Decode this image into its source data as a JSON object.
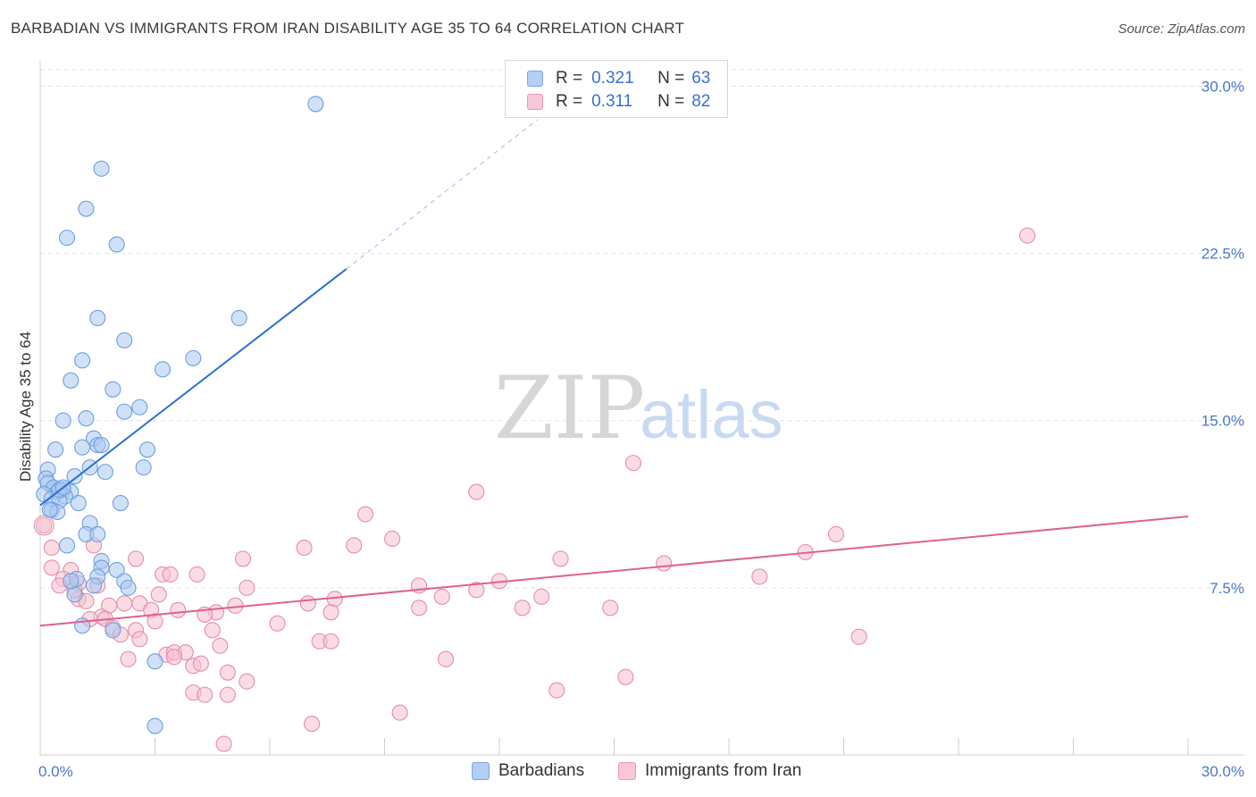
{
  "title": "BARBADIAN VS IMMIGRANTS FROM IRAN DISABILITY AGE 35 TO 64 CORRELATION CHART",
  "source": "Source: ZipAtlas.com",
  "watermark": {
    "zip": "ZIP",
    "atlas": "atlas"
  },
  "legend": {
    "r_label": "R =",
    "n_label": "N =",
    "rows": [
      {
        "r": "0.321",
        "n": "63"
      },
      {
        "r": "0.311",
        "n": "82"
      }
    ]
  },
  "bottom_legend": [
    "Barbadians",
    "Immigrants from Iran"
  ],
  "colors": {
    "blue_fill": "#a9c9f0",
    "blue_stroke": "#6f9fdc",
    "blue_line": "#2c6fd1",
    "pink_fill": "#f6bfd0",
    "pink_stroke": "#e48eab",
    "pink_line": "#e0608e",
    "grid": "#e3e3e3",
    "tick_text": "#4a78c8"
  },
  "chart_data": {
    "type": "scatter",
    "title": "BARBADIAN VS IMMIGRANTS FROM IRAN DISABILITY AGE 35 TO 64 CORRELATION CHART",
    "xlabel": "",
    "ylabel": "Disability Age 35 to 64",
    "xlim": [
      0,
      30
    ],
    "ylim": [
      0,
      30.9
    ],
    "x_tick_labels": [
      "0.0%",
      "30.0%"
    ],
    "y_ticks": [
      7.5,
      15.0,
      22.5,
      30.0
    ],
    "y_tick_labels": [
      "7.5%",
      "15.0%",
      "22.5%",
      "30.0%"
    ],
    "grid": true,
    "legend_position": "top-center",
    "series": [
      {
        "name": "Barbadians",
        "R": 0.321,
        "N": 63,
        "trend": {
          "x": [
            0.0,
            8.0
          ],
          "y": [
            11.2,
            21.8
          ],
          "dashed_to": [
            13.0,
            28.5
          ]
        },
        "points": [
          [
            7.2,
            29.2
          ],
          [
            1.6,
            26.3
          ],
          [
            1.2,
            24.5
          ],
          [
            0.7,
            23.2
          ],
          [
            2.0,
            22.9
          ],
          [
            5.2,
            19.6
          ],
          [
            1.5,
            19.6
          ],
          [
            2.2,
            18.6
          ],
          [
            1.1,
            17.7
          ],
          [
            4.0,
            17.8
          ],
          [
            3.2,
            17.3
          ],
          [
            0.8,
            16.8
          ],
          [
            1.9,
            16.4
          ],
          [
            2.6,
            15.6
          ],
          [
            2.2,
            15.4
          ],
          [
            0.6,
            15.0
          ],
          [
            1.2,
            15.1
          ],
          [
            1.4,
            14.2
          ],
          [
            1.5,
            13.9
          ],
          [
            1.1,
            13.8
          ],
          [
            0.4,
            13.7
          ],
          [
            2.8,
            13.7
          ],
          [
            1.6,
            13.9
          ],
          [
            0.2,
            12.8
          ],
          [
            1.3,
            12.9
          ],
          [
            1.7,
            12.7
          ],
          [
            2.7,
            12.9
          ],
          [
            0.9,
            12.5
          ],
          [
            0.15,
            12.4
          ],
          [
            0.2,
            12.2
          ],
          [
            0.35,
            12.0
          ],
          [
            0.6,
            11.9
          ],
          [
            0.45,
            11.8
          ],
          [
            0.8,
            11.8
          ],
          [
            0.65,
            11.6
          ],
          [
            0.1,
            11.7
          ],
          [
            0.3,
            11.5
          ],
          [
            0.5,
            11.4
          ],
          [
            1.0,
            11.3
          ],
          [
            2.1,
            11.3
          ],
          [
            0.3,
            11.0
          ],
          [
            0.45,
            10.9
          ],
          [
            1.3,
            10.4
          ],
          [
            1.2,
            9.9
          ],
          [
            1.5,
            9.9
          ],
          [
            0.7,
            9.4
          ],
          [
            1.6,
            8.7
          ],
          [
            2.0,
            8.3
          ],
          [
            1.6,
            8.4
          ],
          [
            0.95,
            7.9
          ],
          [
            1.5,
            8.0
          ],
          [
            2.2,
            7.8
          ],
          [
            2.3,
            7.5
          ],
          [
            0.9,
            7.2
          ],
          [
            1.1,
            5.8
          ],
          [
            1.9,
            5.6
          ],
          [
            3.0,
            4.2
          ],
          [
            3.0,
            1.3
          ],
          [
            0.5,
            11.9
          ],
          [
            0.25,
            11.0
          ],
          [
            0.8,
            7.8
          ],
          [
            1.4,
            7.6
          ],
          [
            0.6,
            12.0
          ]
        ]
      },
      {
        "name": "Immigrants from Iran",
        "R": 0.311,
        "N": 82,
        "trend": {
          "x": [
            0.0,
            30.0
          ],
          "y": [
            5.8,
            10.7
          ]
        },
        "points": [
          [
            25.8,
            23.3
          ],
          [
            15.5,
            13.1
          ],
          [
            11.4,
            11.8
          ],
          [
            8.5,
            10.8
          ],
          [
            9.2,
            9.7
          ],
          [
            20.8,
            9.9
          ],
          [
            6.9,
            9.3
          ],
          [
            8.2,
            9.4
          ],
          [
            20.0,
            9.1
          ],
          [
            13.6,
            8.8
          ],
          [
            2.5,
            8.8
          ],
          [
            5.3,
            8.8
          ],
          [
            16.3,
            8.6
          ],
          [
            0.3,
            8.4
          ],
          [
            0.8,
            8.3
          ],
          [
            1.4,
            9.4
          ],
          [
            0.1,
            10.3
          ],
          [
            0.3,
            9.3
          ],
          [
            3.2,
            8.1
          ],
          [
            3.4,
            8.1
          ],
          [
            4.1,
            8.1
          ],
          [
            18.8,
            8.0
          ],
          [
            12.0,
            7.8
          ],
          [
            0.6,
            7.9
          ],
          [
            0.5,
            7.6
          ],
          [
            1.0,
            7.7
          ],
          [
            1.5,
            7.6
          ],
          [
            9.9,
            7.6
          ],
          [
            11.4,
            7.4
          ],
          [
            5.4,
            7.5
          ],
          [
            10.5,
            7.1
          ],
          [
            13.1,
            7.1
          ],
          [
            3.1,
            7.2
          ],
          [
            7.7,
            7.0
          ],
          [
            1.0,
            7.0
          ],
          [
            1.2,
            6.9
          ],
          [
            2.6,
            6.8
          ],
          [
            1.8,
            6.7
          ],
          [
            2.2,
            6.8
          ],
          [
            5.1,
            6.7
          ],
          [
            7.0,
            6.8
          ],
          [
            9.9,
            6.6
          ],
          [
            12.6,
            6.6
          ],
          [
            14.9,
            6.6
          ],
          [
            2.9,
            6.5
          ],
          [
            3.6,
            6.5
          ],
          [
            4.6,
            6.4
          ],
          [
            7.6,
            6.4
          ],
          [
            4.3,
            6.3
          ],
          [
            1.6,
            6.2
          ],
          [
            1.7,
            6.1
          ],
          [
            3.0,
            6.0
          ],
          [
            6.2,
            5.9
          ],
          [
            1.9,
            5.7
          ],
          [
            2.5,
            5.6
          ],
          [
            4.5,
            5.6
          ],
          [
            2.1,
            5.4
          ],
          [
            2.6,
            5.2
          ],
          [
            7.3,
            5.1
          ],
          [
            7.6,
            5.1
          ],
          [
            21.4,
            5.3
          ],
          [
            4.7,
            4.9
          ],
          [
            3.3,
            4.5
          ],
          [
            3.5,
            4.6
          ],
          [
            3.8,
            4.6
          ],
          [
            2.3,
            4.3
          ],
          [
            10.6,
            4.3
          ],
          [
            4.0,
            4.0
          ],
          [
            4.2,
            4.1
          ],
          [
            4.9,
            3.7
          ],
          [
            15.3,
            3.5
          ],
          [
            5.4,
            3.3
          ],
          [
            13.5,
            2.9
          ],
          [
            4.0,
            2.8
          ],
          [
            4.3,
            2.7
          ],
          [
            4.9,
            2.7
          ],
          [
            9.4,
            1.9
          ],
          [
            7.1,
            1.4
          ],
          [
            4.8,
            0.5
          ],
          [
            1.3,
            6.1
          ],
          [
            0.9,
            7.4
          ],
          [
            3.5,
            4.4
          ]
        ]
      }
    ]
  }
}
